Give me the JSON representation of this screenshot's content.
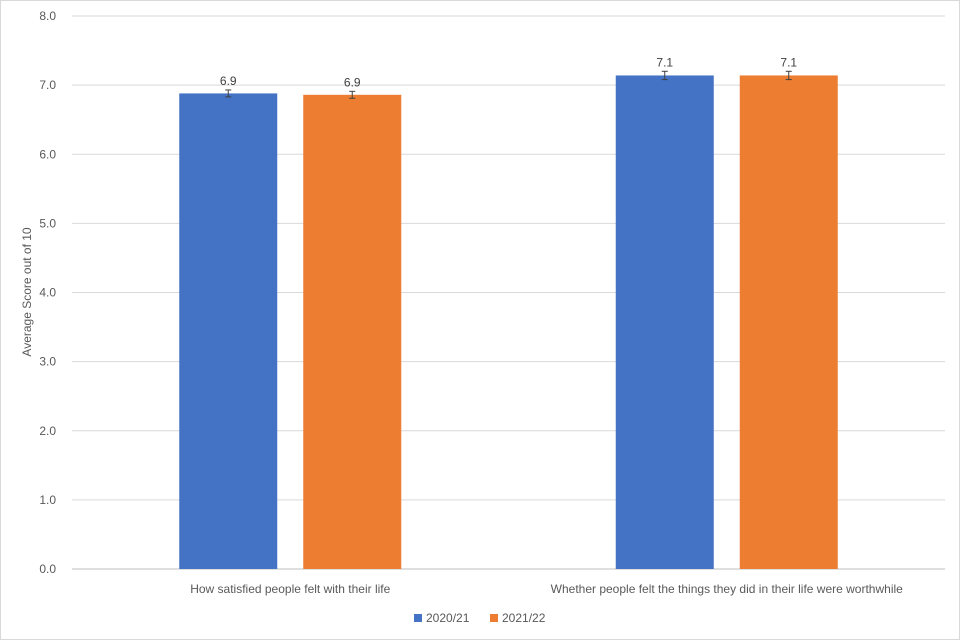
{
  "chart_data": {
    "type": "bar",
    "title": "",
    "xlabel": "",
    "ylabel": "Average Score out of 10",
    "ylim": [
      0,
      8
    ],
    "yticks": [
      0,
      1,
      2,
      3,
      4,
      5,
      6,
      7,
      8
    ],
    "ytick_labels": [
      "0.0",
      "1.0",
      "2.0",
      "3.0",
      "4.0",
      "5.0",
      "6.0",
      "7.0",
      "8.0"
    ],
    "categories": [
      "How satisfied people felt with their life",
      "Whether people felt the things they did in their life were worthwhile"
    ],
    "series": [
      {
        "name": "2020/21",
        "color": "#4472c4",
        "values": [
          6.88,
          7.14
        ],
        "labels": [
          "6.9",
          "7.1"
        ],
        "error": [
          0.05,
          0.06
        ]
      },
      {
        "name": "2021/22",
        "color": "#ed7d31",
        "values": [
          6.86,
          7.14
        ],
        "labels": [
          "6.9",
          "7.1"
        ],
        "error": [
          0.05,
          0.06
        ]
      }
    ],
    "grid": true,
    "legend_position": "bottom"
  }
}
